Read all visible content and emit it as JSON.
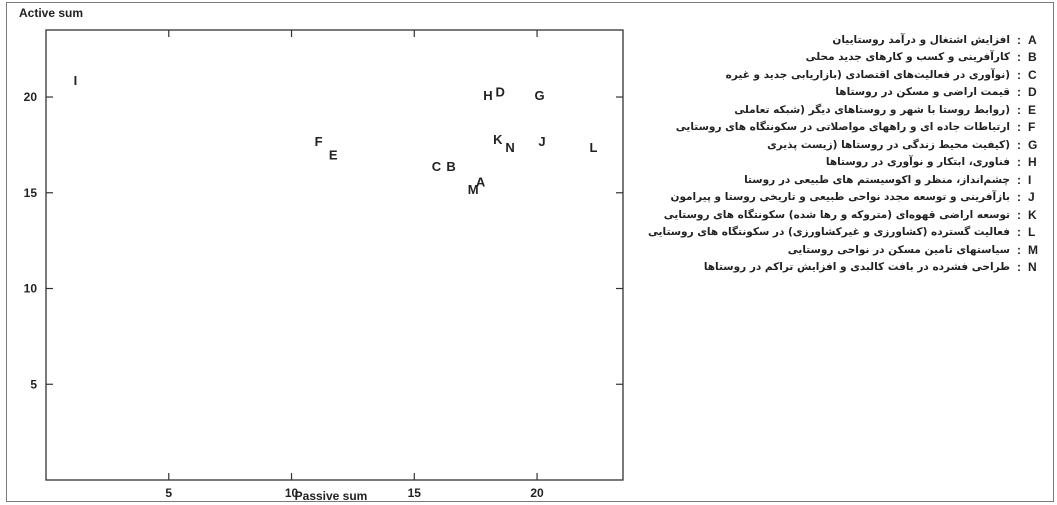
{
  "chart_data": {
    "type": "scatter",
    "title": "",
    "xlabel": "Passive sum",
    "ylabel": "Active sum",
    "xlim": [
      0,
      23.5
    ],
    "ylim": [
      0,
      23.5
    ],
    "xticks": [
      5,
      10,
      15,
      20
    ],
    "yticks": [
      5,
      10,
      15,
      20
    ],
    "grid": false,
    "legend_position": "right",
    "points": [
      {
        "label": "A",
        "x": 17.7,
        "y": 15.6
      },
      {
        "label": "B",
        "x": 16.5,
        "y": 16.4
      },
      {
        "label": "C",
        "x": 15.9,
        "y": 16.4
      },
      {
        "label": "D",
        "x": 18.5,
        "y": 20.3
      },
      {
        "label": "E",
        "x": 11.7,
        "y": 17.0
      },
      {
        "label": "F",
        "x": 11.1,
        "y": 17.7
      },
      {
        "label": "G",
        "x": 20.1,
        "y": 20.1
      },
      {
        "label": "H",
        "x": 18.0,
        "y": 20.1
      },
      {
        "label": "I",
        "x": 1.2,
        "y": 20.9
      },
      {
        "label": "J",
        "x": 20.2,
        "y": 17.7
      },
      {
        "label": "K",
        "x": 18.4,
        "y": 17.8
      },
      {
        "label": "L",
        "x": 22.3,
        "y": 17.4
      },
      {
        "label": "M",
        "x": 17.4,
        "y": 15.2
      },
      {
        "label": "N",
        "x": 18.9,
        "y": 17.4
      }
    ]
  },
  "legend": {
    "separator": ":",
    "entries": [
      {
        "code": "A",
        "text": "افزایش اشتغال و درآمد روستاییان"
      },
      {
        "code": "B",
        "text": "کارآفرینی و کسب و کارهای جدید محلی"
      },
      {
        "code": "C",
        "text": "(نوآوری در فعالیت‌های اقتصادی (بازاریابی جدید و غیره"
      },
      {
        "code": "D",
        "text": "قیمت اراضی و مسکن در روستاها"
      },
      {
        "code": "E",
        "text": "(روابط روستا با شهر و روستاهای دیگر (شبکه تعاملی"
      },
      {
        "code": "F",
        "text": "ارتباطات جاده ای و راههای مواصلاتی در سکونتگاه های روستایی"
      },
      {
        "code": "G",
        "text": "(کیفیت محیط زندگی در روستاها (زیست پذیری"
      },
      {
        "code": "H",
        "text": "فناوری، ابتکار و نوآوری در روستاها"
      },
      {
        "code": "I",
        "text": "چشم‌انداز، منظر و اکوسیستم های طبیعی در روستا"
      },
      {
        "code": "J",
        "text": "بازآفرینی و توسعه مجدد نواحی طبیعی و تاریخی روستا و پیرامون"
      },
      {
        "code": "K",
        "text": "توسعه اراضی قهوه‌ای (متروکه و رها شده) سکونتگاه های روستایی"
      },
      {
        "code": "L",
        "text": "فعالیت گسترده (کشاورزی و غیرکشاورزی) در سکونتگاه های روستایی"
      },
      {
        "code": "M",
        "text": "سیاستهای تامین مسکن در نواحی روستایی"
      },
      {
        "code": "N",
        "text": "طراحی فشرده در بافت کالبدی و افزایش تراکم در روستاها"
      }
    ]
  }
}
